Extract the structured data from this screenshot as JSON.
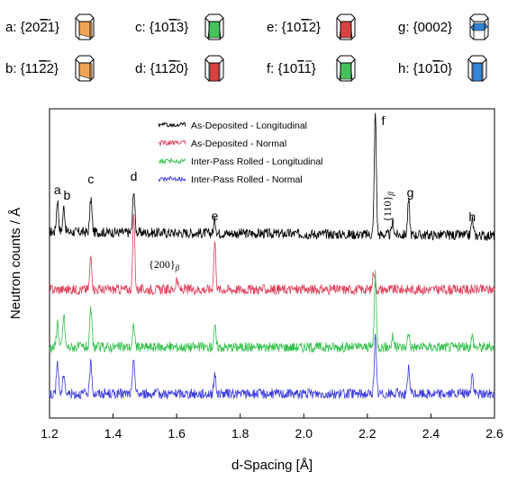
{
  "planes": [
    {
      "letter": "a",
      "label": "a: {20",
      "bar": "2",
      "tail": "1}",
      "color": "#f0a050"
    },
    {
      "letter": "b",
      "label": "b: {11",
      "bar": "2",
      "tail": "2}",
      "color": "#f0a050"
    },
    {
      "letter": "c",
      "label": "c: {10",
      "bar": "1",
      "tail": "3}",
      "color": "#3cbf55"
    },
    {
      "letter": "d",
      "label": "d: {11",
      "bar": "2",
      "tail": "0}",
      "color": "#d83838"
    },
    {
      "letter": "e",
      "label": "e: {10",
      "bar": "1",
      "tail": "2}",
      "color": "#d83838"
    },
    {
      "letter": "f",
      "label": "f: {10",
      "bar": "1",
      "tail": "1}",
      "color": "#3cbf55"
    },
    {
      "letter": "g",
      "label": "g: {0002}",
      "bar": "",
      "tail": "",
      "color": "#2a7fd4"
    },
    {
      "letter": "h",
      "label": "h: {10",
      "bar": "1",
      "tail": "0}",
      "color": "#2a7fd4"
    }
  ],
  "chart_data": {
    "type": "line",
    "xlabel": "d-Spacing [Å]",
    "ylabel": "Neutron counts / Å",
    "xlim": [
      1.2,
      2.6
    ],
    "xticks": [
      "1.2",
      "1.4",
      "1.6",
      "1.8",
      "2.0",
      "2.2",
      "2.4",
      "2.6"
    ],
    "grid": false,
    "legend_position": "top-center",
    "series": [
      {
        "name": "As-Deposited - Longitudinal",
        "color": "#000000",
        "peaks": [
          [
            1.225,
            0.9
          ],
          [
            1.245,
            0.7
          ],
          [
            1.33,
            0.95
          ],
          [
            1.465,
            1.2
          ],
          [
            1.72,
            0.35
          ],
          [
            2.225,
            3.4
          ],
          [
            2.28,
            0.35
          ],
          [
            2.33,
            0.95
          ],
          [
            2.53,
            0.45
          ]
        ]
      },
      {
        "name": "As-Deposited - Normal",
        "color": "#e0405a",
        "peaks": [
          [
            1.33,
            0.95
          ],
          [
            1.465,
            2.05
          ],
          [
            1.6,
            0.3
          ],
          [
            1.72,
            1.35
          ],
          [
            2.22,
            0.55
          ]
        ]
      },
      {
        "name": "Inter-Pass Rolled - Longitudinal",
        "color": "#33c24a",
        "peaks": [
          [
            1.225,
            0.7
          ],
          [
            1.245,
            0.9
          ],
          [
            1.33,
            1.05
          ],
          [
            1.465,
            0.6
          ],
          [
            1.72,
            0.55
          ],
          [
            2.225,
            2.0
          ],
          [
            2.28,
            0.3
          ],
          [
            2.33,
            0.4
          ],
          [
            2.53,
            0.3
          ]
        ]
      },
      {
        "name": "Inter-Pass Rolled - Normal",
        "color": "#3a3ae0",
        "peaks": [
          [
            1.225,
            0.9
          ],
          [
            1.245,
            0.6
          ],
          [
            1.33,
            0.9
          ],
          [
            1.465,
            1.0
          ],
          [
            1.72,
            0.55
          ],
          [
            2.225,
            1.6
          ],
          [
            2.33,
            0.7
          ],
          [
            2.53,
            0.55
          ]
        ]
      }
    ],
    "peak_labels": [
      {
        "text": "a",
        "x": 1.225
      },
      {
        "text": "b",
        "x": 1.255
      },
      {
        "text": "c",
        "x": 1.33
      },
      {
        "text": "d",
        "x": 1.465
      },
      {
        "text": "e",
        "x": 1.72
      },
      {
        "text": "f",
        "x": 2.25
      },
      {
        "text": "g",
        "x": 2.335
      },
      {
        "text": "h",
        "x": 2.53
      }
    ],
    "beta_labels": [
      {
        "text": "{200}",
        "sub": "β",
        "x": 1.6
      },
      {
        "text": "{110}",
        "sub": "β",
        "x": 2.285
      }
    ]
  }
}
